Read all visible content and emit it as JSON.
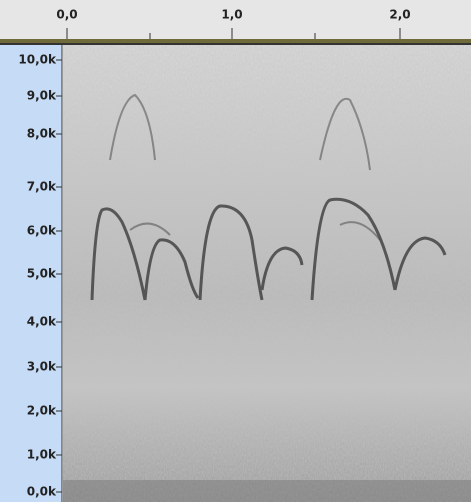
{
  "timeline": {
    "labels": [
      "0,0",
      "1,0",
      "2,0"
    ]
  },
  "frequency_axis": {
    "labels": [
      "10,0k",
      "9,0k",
      "8,0k",
      "7,0k",
      "6,0k",
      "5,0k",
      "4,0k",
      "3,0k",
      "2,0k",
      "1,0k",
      "0,0k"
    ]
  }
}
